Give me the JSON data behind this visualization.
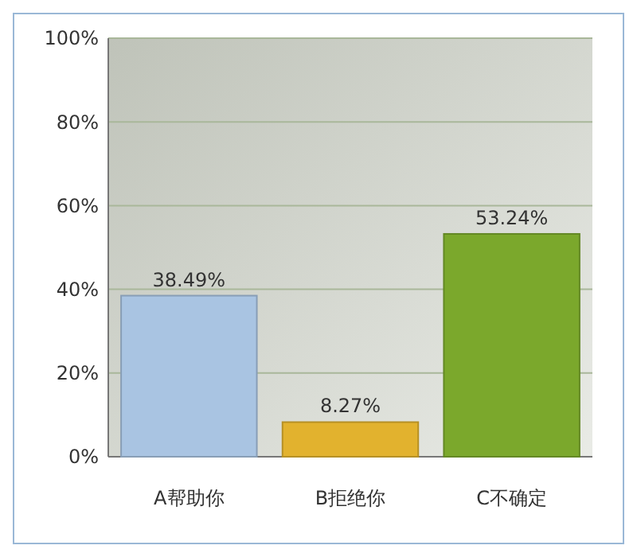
{
  "chart_data": {
    "type": "bar",
    "categories": [
      "A帮助你",
      "B拒绝你",
      "C不确定"
    ],
    "values": [
      38.49,
      8.27,
      53.24
    ],
    "colors": [
      "#a9c4e2",
      "#e2b22e",
      "#7ba82c"
    ],
    "value_labels": [
      "38.49%",
      "8.27%",
      "53.24%"
    ],
    "ylim": [
      0,
      100
    ],
    "yticks": [
      {
        "value": 0,
        "label": "0%"
      },
      {
        "value": 20,
        "label": "20%"
      },
      {
        "value": 40,
        "label": "40%"
      },
      {
        "value": 60,
        "label": "60%"
      },
      {
        "value": 80,
        "label": "80%"
      },
      {
        "value": 100,
        "label": "100%"
      }
    ],
    "grid": "y"
  }
}
